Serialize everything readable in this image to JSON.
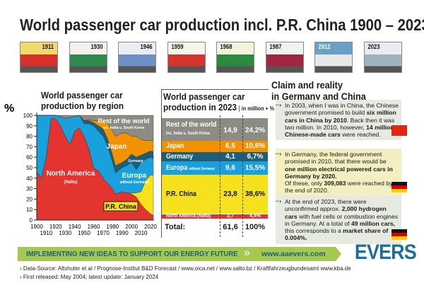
{
  "title": "World passenger car production incl. P.R. China 1900 – 2023",
  "thumbnails": [
    "1911",
    "1930",
    "1946",
    "1959",
    "1968",
    "1987",
    "2012",
    "2023"
  ],
  "chart_data": {
    "type": "area",
    "title": "World passenger car production by region",
    "ylabel": "%",
    "ylim": [
      0,
      100
    ],
    "xlim": [
      1900,
      2023
    ],
    "yticks": [
      "0",
      "10",
      "20",
      "30",
      "40",
      "50",
      "60",
      "70",
      "80",
      "90",
      "100"
    ],
    "xticks_top": [
      "1900",
      "1920",
      "1940",
      "1960",
      "1980",
      "2000",
      "2020"
    ],
    "xticks_bottom": [
      "1910",
      "1930",
      "1950",
      "1970",
      "1990",
      "2010"
    ],
    "stacked": true,
    "x": [
      1900,
      1905,
      1910,
      1915,
      1920,
      1925,
      1930,
      1935,
      1940,
      1945,
      1950,
      1955,
      1960,
      1965,
      1970,
      1975,
      1980,
      1983,
      1990,
      1995,
      2000,
      2005,
      2010,
      2015,
      2020,
      2023
    ],
    "series": [
      {
        "name": "North America",
        "sub": "(Nafta)",
        "color": "#e3342f",
        "values": [
          46,
          40,
          60,
          97,
          97,
          90,
          80,
          72,
          85,
          88,
          80,
          68,
          50,
          47,
          40,
          35,
          30,
          25,
          27,
          26,
          25,
          22,
          15,
          10,
          6,
          4.4
        ]
      },
      {
        "name": "P.R. China",
        "color": "#f5e11c",
        "values": [
          0,
          0,
          0,
          0,
          0,
          0,
          0,
          0,
          0,
          0,
          0,
          0,
          0,
          0,
          0,
          0,
          0,
          0,
          0,
          0,
          1,
          4,
          12,
          28,
          37,
          38.6
        ]
      },
      {
        "name": "Europa",
        "sub": "without Germany",
        "color": "#1aa0dc",
        "values": [
          54,
          60,
          40,
          3,
          3,
          9,
          17,
          26,
          14,
          12,
          12,
          24,
          40,
          38,
          40,
          35,
          25,
          20,
          23,
          26,
          29,
          22,
          28,
          20,
          17,
          15.5
        ]
      },
      {
        "name": "Germany",
        "color": "#1d5f7a",
        "values": [
          0,
          0,
          0,
          0,
          0,
          0,
          0,
          0,
          0,
          0,
          3,
          3,
          3,
          5,
          7,
          7,
          7,
          7,
          5,
          6,
          8,
          12,
          7,
          6,
          6,
          6.7
        ]
      },
      {
        "name": "Japan",
        "color": "#f39200",
        "values": [
          0,
          0,
          0,
          0,
          0,
          0,
          0,
          0,
          0,
          0,
          0,
          1,
          2,
          5,
          8,
          15,
          23,
          28,
          28,
          25,
          17,
          20,
          15,
          12,
          10,
          10.6
        ]
      },
      {
        "name": "Rest of the world",
        "sub": "inc. India u. South Korea",
        "color": "#8c8c84",
        "values": null
      }
    ]
  },
  "table": {
    "title1": "World passenger car",
    "title2": "production in 2023",
    "unit": "in million + %",
    "col_million": "million",
    "rows": [
      {
        "label": "Rest of the world",
        "sub": "inc. India u. South Korea",
        "million": "14,9",
        "pct": "24,2%"
      },
      {
        "label": "Japan",
        "million": "6,5",
        "pct": "10,6%"
      },
      {
        "label": "Germany",
        "million": "4,1",
        "pct": "6,7%"
      },
      {
        "label": "Europa",
        "sub": "without Germany",
        "million": "9,6",
        "pct": "15,5%"
      },
      {
        "label": "P.R. China",
        "million": "23,8",
        "pct": "38,6%"
      },
      {
        "label": "North America (Nafta)",
        "million": "2,7",
        "pct": "4,4%"
      }
    ],
    "total_label": "Total:",
    "total_million": "61,6",
    "total_pct": "100%"
  },
  "claims": {
    "title1": "Claim and reality",
    "title2": "in Germany and China",
    "items": [
      {
        "html": "In 2003, when I was in China, the Chinese government promised to build <b>six million cars in China by 2010</b>. Back then it was two million. In 2010, however, <b>14 million Chinese-made cars</b> were reached."
      },
      {
        "html": "In Germany, the federal government promised in 2010, that there would be <b>one million electrical powered cars in Germany by 2020.</b><br>Of these, only <b>309,083</b> were reached by the end of 2020."
      },
      {
        "html": "At the end of 2023, there were unconfirmed approx. <b>2,000 hydrogen cars</b> with fuel cells or combustion engines in Germany. At a total of <b>49 million cars,</b> this corresponds to a <b>market share of 0.004%.</b>"
      }
    ]
  },
  "banner": {
    "slogan": "IMPLEMENTING  NEW  IDEAS TO SUPPORT OUR ENERGY FUTURE",
    "url": "www.aaevers.com",
    "logo": "EVERS"
  },
  "footer": {
    "source": "Data-Source: Altshuter et al / Prognose-Institut B&D Forecast / www.oica.net / www.salto.bz / Kraftfahrzeugbundesamt www.kba.de",
    "released": "First released: May 2004; latest update: January 2024"
  },
  "colors": {
    "banner": "#a5c84f",
    "banner_text": "#1d5f7a"
  }
}
